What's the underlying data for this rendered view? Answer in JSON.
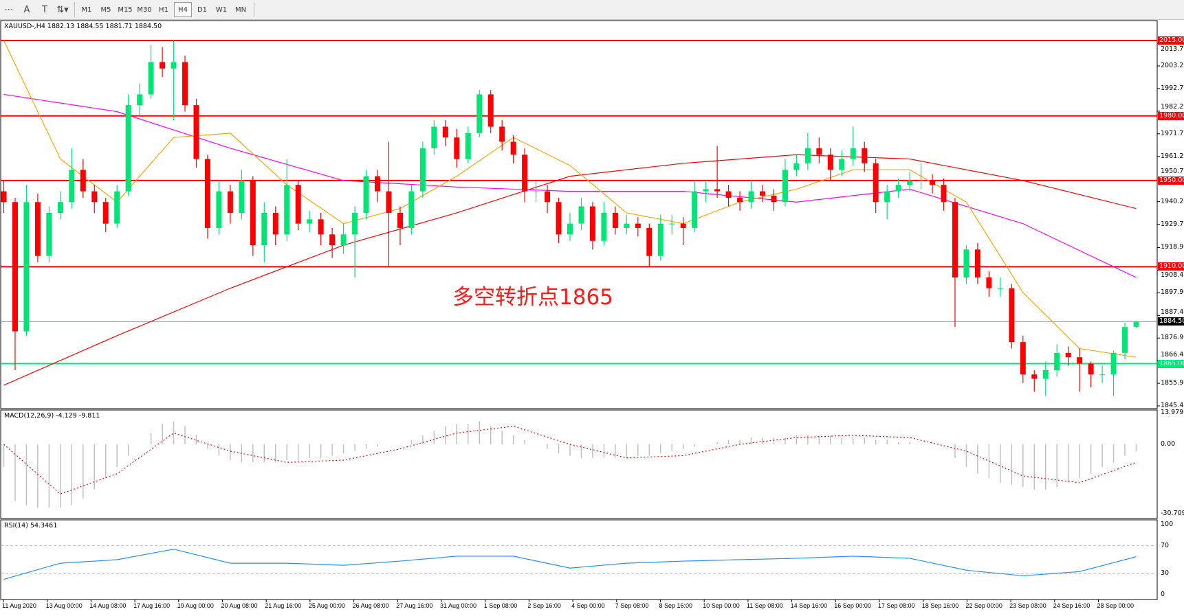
{
  "toolbar": {
    "tools": [
      {
        "icon": "grid-lines-icon",
        "glyph": "⋯"
      },
      {
        "icon": "text-label-icon",
        "glyph": "A"
      },
      {
        "icon": "text-box-icon",
        "glyph": "T"
      },
      {
        "icon": "arrows-icon",
        "glyph": "⇅▾"
      }
    ],
    "timeframes": [
      "M1",
      "M5",
      "M15",
      "M30",
      "H1",
      "H4",
      "D1",
      "W1",
      "MN"
    ],
    "active_timeframe": "H4"
  },
  "chart": {
    "legend": "XAUUSD-,H4  1882.13 1884.55 1881.71 1884.50",
    "annotation": "多空转折点1865",
    "colors": {
      "bull": "#00e676",
      "bear": "#ff0000",
      "ma_fast": "#ffa500",
      "ma_mid": "#ff00ff",
      "ma_slow": "#ff0000",
      "macd_hist": "#c0c0c0",
      "macd_signal": "#ff0000",
      "rsi": "#1e90ff"
    },
    "price_ticks": [
      "2013.70",
      "2003.20",
      "1992.70",
      "1982.20",
      "1971.70",
      "1961.20",
      "1950.70",
      "1940.20",
      "1929.70",
      "1918.90",
      "1908.40",
      "1897.90",
      "1887.40",
      "1876.90",
      "1866.40",
      "1855.90",
      "1845.40"
    ],
    "levels": [
      {
        "price": 2015.0,
        "label": "2015.00",
        "color": "#ff0000",
        "text_color": "#ffffff"
      },
      {
        "price": 1980.0,
        "label": "1980.00",
        "color": "#ff0000",
        "text_color": "#ffffff"
      },
      {
        "price": 1950.0,
        "label": "1950.00",
        "color": "#ff0000",
        "text_color": "#ffffff"
      },
      {
        "price": 1910.0,
        "label": "1910.00",
        "color": "#ff0000",
        "text_color": "#ffffff"
      },
      {
        "price": 1865.0,
        "label": "1865.00",
        "color": "#00e676",
        "text_color": "#ffffff"
      },
      {
        "price": 1884.5,
        "label": "1884.50",
        "color": "#8c9aa8",
        "text_color": "#ffffff",
        "label_bg": "#000000"
      }
    ],
    "time_labels": [
      "11 Aug 2020",
      "13 Aug 00:00",
      "14 Aug 08:00",
      "17 Aug 16:00",
      "19 Aug 00:00",
      "20 Aug 08:00",
      "21 Aug 16:00",
      "25 Aug 00:00",
      "26 Aug 08:00",
      "27 Aug 16:00",
      "31 Aug 00:00",
      "1 Sep 08:00",
      "2 Sep 16:00",
      "4 Sep 00:00",
      "7 Sep 08:00",
      "8 Sep 16:00",
      "10 Sep 00:00",
      "11 Sep 08:00",
      "14 Sep 16:00",
      "16 Sep 00:00",
      "17 Sep 08:00",
      "18 Sep 16:00",
      "22 Sep 00:00",
      "23 Sep 08:00",
      "24 Sep 16:00",
      "28 Sep 00:00"
    ]
  },
  "macd": {
    "legend": "MACD(12,26,9) -4.129 -9.811",
    "axis_max": "13.979",
    "axis_zero": "0.00",
    "axis_min": "-30.709"
  },
  "rsi": {
    "legend": "RSI(14) 54.3461",
    "ticks": [
      "100",
      "70",
      "30",
      "0"
    ]
  },
  "chart_data": {
    "type": "candlestick",
    "symbol": "XAUUSD-",
    "timeframe": "H4",
    "ylim": [
      1845.4,
      2017
    ],
    "ohlc": [
      [
        1945,
        1950,
        1935,
        1940
      ],
      [
        1940,
        1942,
        1862,
        1880
      ],
      [
        1880,
        1948,
        1878,
        1940
      ],
      [
        1940,
        1944,
        1912,
        1915
      ],
      [
        1915,
        1938,
        1912,
        1935
      ],
      [
        1935,
        1945,
        1932,
        1940
      ],
      [
        1940,
        1965,
        1937,
        1955
      ],
      [
        1955,
        1960,
        1942,
        1945
      ],
      [
        1945,
        1948,
        1935,
        1940
      ],
      [
        1940,
        1942,
        1926,
        1930
      ],
      [
        1930,
        1948,
        1928,
        1945
      ],
      [
        1945,
        1990,
        1943,
        1985
      ],
      [
        1985,
        1995,
        1980,
        1990
      ],
      [
        1990,
        2013,
        1988,
        2005
      ],
      [
        2005,
        2012,
        1998,
        2002
      ],
      [
        2002,
        2015,
        1978,
        2005
      ],
      [
        2005,
        2008,
        1982,
        1985
      ],
      [
        1985,
        1988,
        1956,
        1960
      ],
      [
        1960,
        1962,
        1923,
        1928
      ],
      [
        1928,
        1950,
        1925,
        1945
      ],
      [
        1945,
        1948,
        1930,
        1935
      ],
      [
        1935,
        1955,
        1932,
        1950
      ],
      [
        1950,
        1952,
        1915,
        1920
      ],
      [
        1920,
        1940,
        1912,
        1935
      ],
      [
        1935,
        1938,
        1920,
        1925
      ],
      [
        1925,
        1960,
        1922,
        1948
      ],
      [
        1948,
        1950,
        1927,
        1930
      ],
      [
        1930,
        1936,
        1926,
        1932
      ],
      [
        1932,
        1935,
        1920,
        1925
      ],
      [
        1925,
        1928,
        1914,
        1920
      ],
      [
        1920,
        1930,
        1916,
        1925
      ],
      [
        1925,
        1938,
        1905,
        1935
      ],
      [
        1935,
        1955,
        1932,
        1952
      ],
      [
        1952,
        1955,
        1940,
        1945
      ],
      [
        1945,
        1968,
        1910,
        1935
      ],
      [
        1935,
        1938,
        1920,
        1928
      ],
      [
        1928,
        1948,
        1925,
        1945
      ],
      [
        1945,
        1968,
        1942,
        1965
      ],
      [
        1965,
        1978,
        1962,
        1975
      ],
      [
        1975,
        1978,
        1966,
        1970
      ],
      [
        1970,
        1974,
        1956,
        1960
      ],
      [
        1960,
        1975,
        1958,
        1972
      ],
      [
        1972,
        1992,
        1970,
        1990
      ],
      [
        1990,
        1992,
        1972,
        1975
      ],
      [
        1975,
        1978,
        1964,
        1968
      ],
      [
        1968,
        1971,
        1958,
        1962
      ],
      [
        1962,
        1965,
        1940,
        1945
      ],
      [
        1945,
        1950,
        1940,
        1945
      ],
      [
        1945,
        1948,
        1935,
        1940
      ],
      [
        1940,
        1942,
        1921,
        1925
      ],
      [
        1925,
        1935,
        1922,
        1930
      ],
      [
        1930,
        1942,
        1927,
        1938
      ],
      [
        1938,
        1940,
        1918,
        1922
      ],
      [
        1922,
        1940,
        1920,
        1935
      ],
      [
        1935,
        1938,
        1925,
        1928
      ],
      [
        1928,
        1934,
        1925,
        1930
      ],
      [
        1930,
        1933,
        1924,
        1928
      ],
      [
        1928,
        1930,
        1910,
        1915
      ],
      [
        1915,
        1934,
        1913,
        1930
      ],
      [
        1930,
        1934,
        1925,
        1930
      ],
      [
        1930,
        1933,
        1920,
        1928
      ],
      [
        1928,
        1950,
        1926,
        1945
      ],
      [
        1945,
        1950,
        1940,
        1946
      ],
      [
        1946,
        1966,
        1942,
        1945
      ],
      [
        1945,
        1948,
        1938,
        1942
      ],
      [
        1942,
        1945,
        1936,
        1940
      ],
      [
        1940,
        1950,
        1937,
        1945
      ],
      [
        1945,
        1948,
        1940,
        1943
      ],
      [
        1943,
        1946,
        1936,
        1940
      ],
      [
        1940,
        1960,
        1938,
        1955
      ],
      [
        1955,
        1962,
        1952,
        1958
      ],
      [
        1958,
        1972,
        1955,
        1965
      ],
      [
        1965,
        1970,
        1958,
        1962
      ],
      [
        1962,
        1965,
        1950,
        1955
      ],
      [
        1955,
        1964,
        1952,
        1960
      ],
      [
        1960,
        1975,
        1957,
        1965
      ],
      [
        1965,
        1968,
        1954,
        1958
      ],
      [
        1958,
        1960,
        1935,
        1940
      ],
      [
        1940,
        1948,
        1932,
        1945
      ],
      [
        1945,
        1951,
        1942,
        1948
      ],
      [
        1948,
        1954,
        1945,
        1950
      ],
      [
        1950,
        1958,
        1946,
        1950
      ],
      [
        1950,
        1953,
        1944,
        1948
      ],
      [
        1948,
        1951,
        1936,
        1940
      ],
      [
        1940,
        1942,
        1882,
        1905
      ],
      [
        1905,
        1920,
        1902,
        1918
      ],
      [
        1918,
        1921,
        1902,
        1905
      ],
      [
        1905,
        1908,
        1896,
        1900
      ],
      [
        1900,
        1905,
        1896,
        1900
      ],
      [
        1900,
        1902,
        1872,
        1875
      ],
      [
        1875,
        1878,
        1856,
        1860
      ],
      [
        1860,
        1862,
        1852,
        1858
      ],
      [
        1858,
        1866,
        1850,
        1862
      ],
      [
        1862,
        1874,
        1859,
        1870
      ],
      [
        1870,
        1873,
        1864,
        1868
      ],
      [
        1868,
        1872,
        1852,
        1865
      ],
      [
        1865,
        1866,
        1854,
        1860
      ],
      [
        1860,
        1864,
        1856,
        1860
      ],
      [
        1860,
        1871,
        1850,
        1870
      ],
      [
        1870,
        1884,
        1867,
        1882
      ],
      [
        1882.13,
        1884.55,
        1881.71,
        1884.5
      ]
    ],
    "ma_fast_every5": [
      2015,
      1960,
      1940,
      1970,
      1972,
      1948,
      1930,
      1937,
      1952,
      1970,
      1957,
      1935,
      1930,
      1940,
      1946,
      1955,
      1955,
      1940,
      1898,
      1872,
      1868
    ],
    "ma_mid_every10": [
      1990,
      1982,
      1965,
      1950,
      1947,
      1945,
      1945,
      1940,
      1946,
      1930,
      1905
    ],
    "ma_slow_every10": [
      1855,
      1878,
      1900,
      1920,
      1935,
      1952,
      1958,
      1962,
      1960,
      1950,
      1937
    ],
    "macd_hist": [
      -10,
      -25,
      -27,
      -28,
      -28,
      -28,
      -27,
      -24,
      -20,
      -15,
      -10,
      -5,
      0,
      5,
      9,
      10,
      8,
      4,
      -2,
      -5,
      -7,
      -8,
      -8,
      -8,
      -8,
      -7,
      -7,
      -6,
      -6,
      -5,
      -4,
      -3,
      -2,
      -1,
      0,
      0,
      2,
      4,
      6,
      8,
      9,
      9,
      10,
      8,
      6,
      4,
      2,
      0,
      -2,
      -4,
      -5,
      -6,
      -6,
      -6,
      -6,
      -6,
      -5,
      -5,
      -4,
      -3,
      -2,
      -1,
      0,
      1,
      2,
      2,
      3,
      3,
      3,
      3,
      4,
      4,
      4,
      4,
      3,
      3,
      3,
      2,
      2,
      1,
      1,
      0,
      0,
      0,
      -6,
      -10,
      -13,
      -15,
      -17,
      -18,
      -19,
      -20,
      -20,
      -19,
      -17,
      -15,
      -13,
      -10,
      -8,
      -5,
      -3
    ],
    "macd_signal_every5": [
      0,
      -22,
      -13,
      5,
      -3,
      -8,
      -7,
      -2,
      5,
      8,
      0,
      -6,
      -5,
      0,
      3,
      4,
      3,
      -3,
      -14,
      -17,
      -8
    ],
    "macd_range": [
      -30.709,
      13.979
    ],
    "rsi_every5": [
      22,
      45,
      50,
      65,
      45,
      45,
      42,
      48,
      55,
      55,
      38,
      45,
      48,
      50,
      52,
      55,
      52,
      35,
      27,
      33,
      54.35
    ],
    "rsi_levels": [
      30,
      70
    ]
  }
}
